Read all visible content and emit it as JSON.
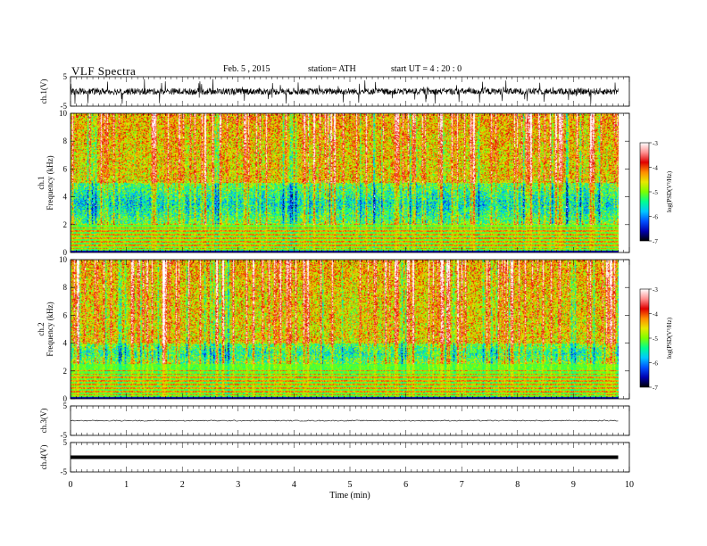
{
  "header": {
    "title": "VLF  Spectra",
    "date": "Feb. 5  , 2015",
    "station": "station= ATH",
    "start": "start  UT  =   4  : 20 : 0"
  },
  "colorbar": {
    "label": "log(PSD(V²/Hz)",
    "ticks": [
      "-3",
      "-4",
      "-5",
      "-6",
      "-7"
    ],
    "range": [
      -7,
      -3
    ],
    "colors": [
      "#000000",
      "#0000b0",
      "#0050ff",
      "#00c8ff",
      "#00ff90",
      "#7cff00",
      "#e8e800",
      "#ff8c00",
      "#e00000",
      "#ff9090",
      "#ffffff"
    ]
  },
  "chart_data": [
    {
      "type": "line",
      "name": "ch1-waveform",
      "ylabel": "ch.1(V)",
      "ylim": [
        -5,
        5
      ],
      "yticks": [
        "5",
        "-5"
      ],
      "xlim": [
        0,
        10
      ],
      "trace": "noisy waveform spanning ~0 to 9.8 min, mostly within about -2 to +2 V with frequent spikes",
      "color": "#000000"
    },
    {
      "type": "heatmap",
      "name": "ch1-spectrogram",
      "ylabel": "Frequency  (kHz)",
      "channel_label": "ch.1",
      "ylim": [
        0,
        10
      ],
      "yticks": [
        "0",
        "2",
        "4",
        "6",
        "8",
        "10"
      ],
      "xlim": [
        0,
        10
      ],
      "data_extent_min": 9.8,
      "band_low_khz": [
        2,
        5
      ],
      "lines_khz": [
        0.25,
        0.5,
        0.75,
        1.0,
        1.25,
        1.5,
        1.75,
        2.0,
        2.2
      ]
    },
    {
      "type": "heatmap",
      "name": "ch2-spectrogram",
      "ylabel": "Frequency  (kHz)",
      "channel_label": "ch.2",
      "ylim": [
        0,
        10
      ],
      "yticks": [
        "0",
        "2",
        "4",
        "6",
        "8",
        "10"
      ],
      "xlim": [
        0,
        10
      ],
      "data_extent_min": 9.8,
      "band_low_khz": [
        2.5,
        4
      ],
      "lines_khz": [
        0.25,
        0.5,
        0.75,
        1.0,
        1.25,
        1.5,
        1.75,
        2.0
      ]
    },
    {
      "type": "line",
      "name": "ch3-waveform",
      "ylabel": "ch.3(V)",
      "ylim": [
        -5,
        5
      ],
      "yticks": [
        "5",
        "-5"
      ],
      "xlim": [
        0,
        10
      ],
      "trace": "nearly flat low-amplitude trace near 0 V up to ~9.8 min",
      "color": "#000000"
    },
    {
      "type": "line",
      "name": "ch4-waveform",
      "ylabel": "ch.4(V)",
      "ylim": [
        -5,
        5
      ],
      "yticks": [
        "5",
        "-5"
      ],
      "xlim": [
        0,
        10
      ],
      "trace": "thick flat trace near 0 V up to ~9.8 min",
      "color": "#000000"
    }
  ],
  "xaxis": {
    "label": "Time  (min)",
    "ticks": [
      "0",
      "1",
      "2",
      "3",
      "4",
      "5",
      "6",
      "7",
      "8",
      "9",
      "10"
    ],
    "range": [
      0,
      10
    ]
  }
}
